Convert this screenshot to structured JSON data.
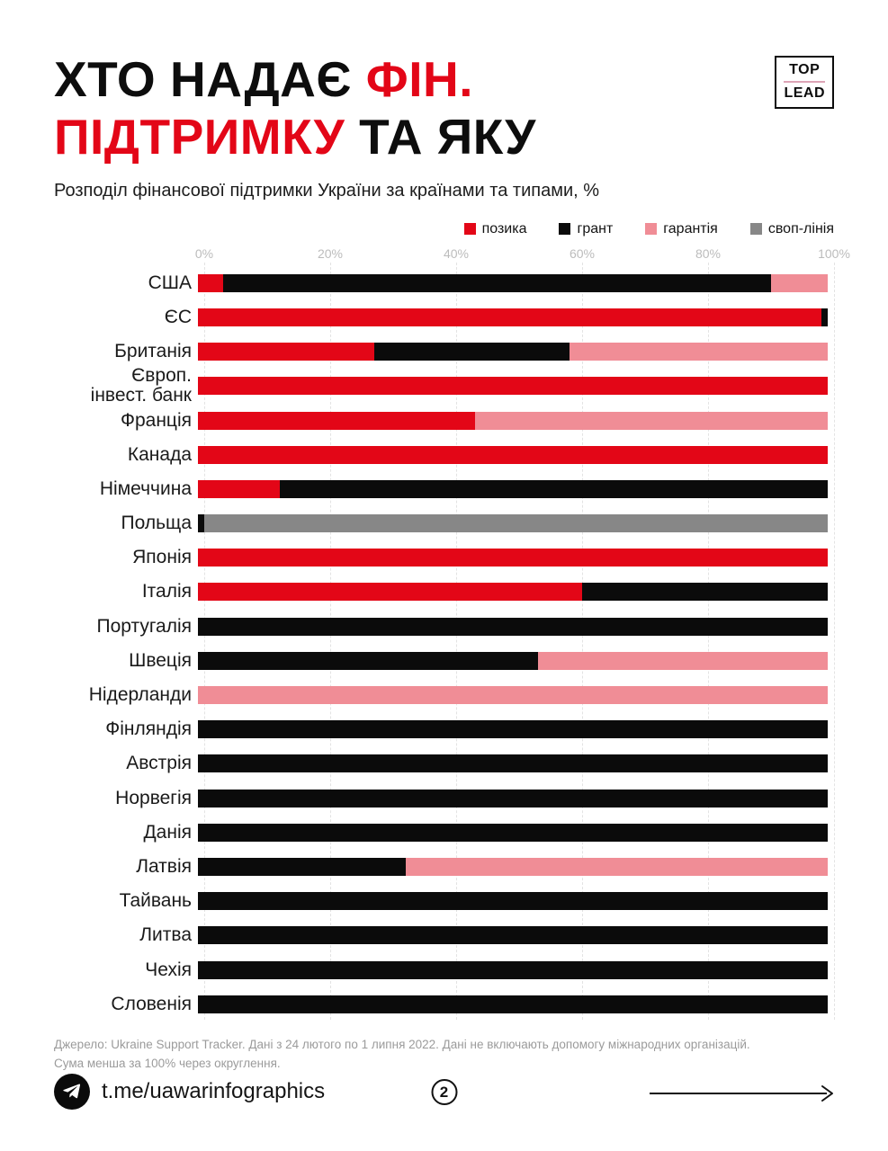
{
  "header": {
    "title_line1_black": "ХТО НАДАЄ ",
    "title_line1_red": "ФІН.",
    "title_line2_red": "ПІДТРИМКУ ",
    "title_line2_black": "ТА ЯКУ",
    "logo_top": "TOP",
    "logo_bottom": "LEAD"
  },
  "subtitle": "Розподіл фінансової підтримки України за країнами та типами, %",
  "colors": {
    "позика": "#e30617",
    "грант": "#0b0b0b",
    "гарантія": "#f08d96",
    "своп-лінія": "#878787",
    "accent_red": "#e30617",
    "axis_text": "#bcbcbc",
    "gridline": "#e3e3e3"
  },
  "legend": [
    {
      "label": "позика",
      "color": "#e30617"
    },
    {
      "label": "грант",
      "color": "#0b0b0b"
    },
    {
      "label": "гарантія",
      "color": "#f08d96"
    },
    {
      "label": "своп-лінія",
      "color": "#878787"
    }
  ],
  "chart_data": {
    "type": "bar",
    "stacked": true,
    "orientation": "horizontal",
    "title": "Розподіл фінансової підтримки України за країнами та типами, %",
    "xlim": [
      0,
      100
    ],
    "x_ticks": [
      "0%",
      "20%",
      "40%",
      "60%",
      "80%",
      "100%"
    ],
    "grid": true,
    "legend_position": "top-right",
    "series_names": [
      "позика",
      "грант",
      "гарантія",
      "своп-лінія"
    ],
    "rows": [
      {
        "label": "США",
        "segments": [
          {
            "type": "позика",
            "value": 4
          },
          {
            "type": "грант",
            "value": 87
          },
          {
            "type": "гарантія",
            "value": 9
          }
        ]
      },
      {
        "label": "ЄС",
        "segments": [
          {
            "type": "позика",
            "value": 99
          },
          {
            "type": "грант",
            "value": 1
          }
        ]
      },
      {
        "label": "Британія",
        "segments": [
          {
            "type": "позика",
            "value": 28
          },
          {
            "type": "грант",
            "value": 31
          },
          {
            "type": "гарантія",
            "value": 41
          }
        ]
      },
      {
        "label": "Європ.\nінвест. банк",
        "segments": [
          {
            "type": "позика",
            "value": 100
          }
        ]
      },
      {
        "label": "Франція",
        "segments": [
          {
            "type": "позика",
            "value": 44
          },
          {
            "type": "гарантія",
            "value": 56
          }
        ]
      },
      {
        "label": "Канада",
        "segments": [
          {
            "type": "позика",
            "value": 100
          }
        ]
      },
      {
        "label": "Німеччина",
        "segments": [
          {
            "type": "позика",
            "value": 13
          },
          {
            "type": "грант",
            "value": 87
          }
        ]
      },
      {
        "label": "Польща",
        "segments": [
          {
            "type": "грант",
            "value": 1
          },
          {
            "type": "своп-лінія",
            "value": 99
          }
        ]
      },
      {
        "label": "Японія",
        "segments": [
          {
            "type": "позика",
            "value": 100
          }
        ]
      },
      {
        "label": "Італія",
        "segments": [
          {
            "type": "позика",
            "value": 61
          },
          {
            "type": "грант",
            "value": 39
          }
        ]
      },
      {
        "label": "Португалія",
        "segments": [
          {
            "type": "грант",
            "value": 100
          }
        ]
      },
      {
        "label": "Швеція",
        "segments": [
          {
            "type": "грант",
            "value": 54
          },
          {
            "type": "гарантія",
            "value": 46
          }
        ]
      },
      {
        "label": "Нідерланди",
        "segments": [
          {
            "type": "гарантія",
            "value": 100
          }
        ]
      },
      {
        "label": "Фінляндія",
        "segments": [
          {
            "type": "грант",
            "value": 100
          }
        ]
      },
      {
        "label": "Австрія",
        "segments": [
          {
            "type": "грант",
            "value": 100
          }
        ]
      },
      {
        "label": "Норвегія",
        "segments": [
          {
            "type": "грант",
            "value": 100
          }
        ]
      },
      {
        "label": "Данія",
        "segments": [
          {
            "type": "грант",
            "value": 100
          }
        ]
      },
      {
        "label": "Латвія",
        "segments": [
          {
            "type": "грант",
            "value": 33
          },
          {
            "type": "гарантія",
            "value": 67
          }
        ]
      },
      {
        "label": "Тайвань",
        "segments": [
          {
            "type": "грант",
            "value": 100
          }
        ]
      },
      {
        "label": "Литва",
        "segments": [
          {
            "type": "грант",
            "value": 100
          }
        ]
      },
      {
        "label": "Чехія",
        "segments": [
          {
            "type": "грант",
            "value": 100
          }
        ]
      },
      {
        "label": "Словенія",
        "segments": [
          {
            "type": "грант",
            "value": 100
          }
        ]
      }
    ]
  },
  "footer": {
    "source_line1": "Джерело: Ukraine Support Tracker. Дані з 24 лютого по 1 липня 2022. Дані не включають допомогу міжнародних організацій.",
    "source_line2": "Сума менша за 100% через округлення.",
    "telegram_handle": "t.me/uawarinfographics",
    "page_number": "2"
  }
}
